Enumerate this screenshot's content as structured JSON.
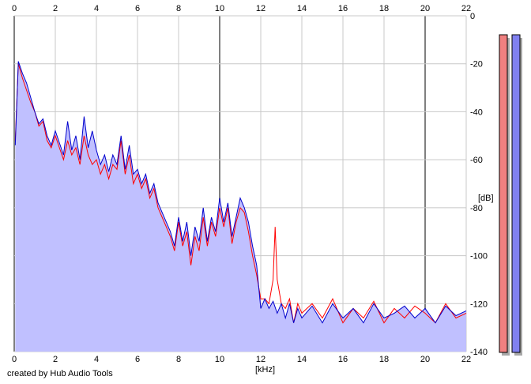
{
  "chart_data": {
    "type": "area",
    "title": "",
    "xlabel": "[kHz]",
    "ylabel": "[dB]",
    "xlim": [
      0,
      22
    ],
    "ylim": [
      -140,
      0
    ],
    "x_ticks": [
      "0",
      "2",
      "4",
      "6",
      "8",
      "10",
      "12",
      "14",
      "16",
      "18",
      "20",
      "22"
    ],
    "y_ticks": [
      "0",
      "-20",
      "-40",
      "-60",
      "-80",
      "-100",
      "-120",
      "-140"
    ],
    "grid": true,
    "legend": "none",
    "series": [
      {
        "channel": "left",
        "color": "#ff0000",
        "x": [
          0.05,
          0.2,
          0.4,
          0.6,
          0.8,
          1.0,
          1.2,
          1.4,
          1.6,
          1.8,
          2.0,
          2.2,
          2.4,
          2.6,
          2.8,
          3.0,
          3.2,
          3.4,
          3.6,
          3.8,
          4.0,
          4.2,
          4.4,
          4.6,
          4.8,
          5.0,
          5.2,
          5.4,
          5.6,
          5.8,
          6.0,
          6.2,
          6.4,
          6.6,
          6.8,
          7.0,
          7.2,
          7.4,
          7.6,
          7.8,
          8.0,
          8.2,
          8.4,
          8.6,
          8.8,
          9.0,
          9.2,
          9.4,
          9.6,
          9.8,
          10.0,
          10.2,
          10.4,
          10.6,
          10.8,
          11.0,
          11.2,
          11.4,
          11.6,
          11.8,
          12.0,
          12.2,
          12.4,
          12.6,
          12.7,
          12.8,
          13.0,
          13.2,
          13.4,
          13.6,
          13.8,
          14.0,
          14.5,
          15.0,
          15.5,
          16.0,
          16.5,
          17.0,
          17.5,
          18.0,
          18.5,
          19.0,
          19.5,
          20.0,
          20.5,
          21.0,
          21.5,
          22.0
        ],
        "values": [
          -52,
          -20,
          -26,
          -31,
          -36,
          -40,
          -46,
          -44,
          -52,
          -55,
          -50,
          -55,
          -60,
          -52,
          -58,
          -55,
          -62,
          -50,
          -58,
          -62,
          -60,
          -66,
          -62,
          -68,
          -62,
          -64,
          -52,
          -66,
          -58,
          -70,
          -66,
          -72,
          -68,
          -76,
          -72,
          -80,
          -84,
          -88,
          -92,
          -98,
          -86,
          -96,
          -90,
          -104,
          -92,
          -98,
          -84,
          -96,
          -86,
          -92,
          -80,
          -88,
          -80,
          -95,
          -86,
          -80,
          -82,
          -90,
          -100,
          -108,
          -118,
          -118,
          -120,
          -110,
          -88,
          -110,
          -120,
          -122,
          -118,
          -128,
          -120,
          -124,
          -120,
          -126,
          -118,
          -128,
          -122,
          -126,
          -119,
          -128,
          -122,
          -126,
          -121,
          -124,
          -128,
          -120,
          -126,
          -124
        ]
      },
      {
        "channel": "right",
        "color": "#0000cc",
        "x": [
          0.05,
          0.2,
          0.4,
          0.6,
          0.8,
          1.0,
          1.2,
          1.4,
          1.6,
          1.8,
          2.0,
          2.2,
          2.4,
          2.6,
          2.8,
          3.0,
          3.2,
          3.4,
          3.6,
          3.8,
          4.0,
          4.2,
          4.4,
          4.6,
          4.8,
          5.0,
          5.2,
          5.4,
          5.6,
          5.8,
          6.0,
          6.2,
          6.4,
          6.6,
          6.8,
          7.0,
          7.2,
          7.4,
          7.6,
          7.8,
          8.0,
          8.2,
          8.4,
          8.6,
          8.8,
          9.0,
          9.2,
          9.4,
          9.6,
          9.8,
          10.0,
          10.2,
          10.4,
          10.6,
          10.8,
          11.0,
          11.2,
          11.4,
          11.6,
          11.8,
          12.0,
          12.2,
          12.4,
          12.6,
          12.8,
          13.0,
          13.2,
          13.4,
          13.6,
          13.8,
          14.0,
          14.5,
          15.0,
          15.5,
          16.0,
          16.5,
          17.0,
          17.5,
          18.0,
          18.5,
          19.0,
          19.5,
          20.0,
          20.5,
          21.0,
          21.5,
          22.0
        ],
        "values": [
          -54,
          -19,
          -24,
          -28,
          -34,
          -40,
          -45,
          -43,
          -50,
          -54,
          -48,
          -53,
          -58,
          -44,
          -56,
          -50,
          -60,
          -42,
          -55,
          -48,
          -56,
          -62,
          -58,
          -65,
          -58,
          -62,
          -50,
          -64,
          -54,
          -66,
          -64,
          -70,
          -66,
          -74,
          -70,
          -78,
          -82,
          -86,
          -90,
          -96,
          -84,
          -94,
          -86,
          -100,
          -88,
          -94,
          -80,
          -94,
          -84,
          -90,
          -76,
          -86,
          -78,
          -92,
          -84,
          -76,
          -80,
          -86,
          -96,
          -104,
          -122,
          -118,
          -122,
          -119,
          -124,
          -120,
          -126,
          -120,
          -128,
          -122,
          -126,
          -121,
          -128,
          -120,
          -126,
          -122,
          -128,
          -120,
          -126,
          -124,
          -121,
          -126,
          -122,
          -128,
          -121,
          -125,
          -123
        ]
      }
    ],
    "area_fill": "#c0c0ff"
  },
  "level_meters": [
    {
      "channel": "left",
      "color": "#f08080"
    },
    {
      "channel": "right",
      "color": "#8080f0"
    }
  ],
  "credit": "created by Hub Audio Tools"
}
